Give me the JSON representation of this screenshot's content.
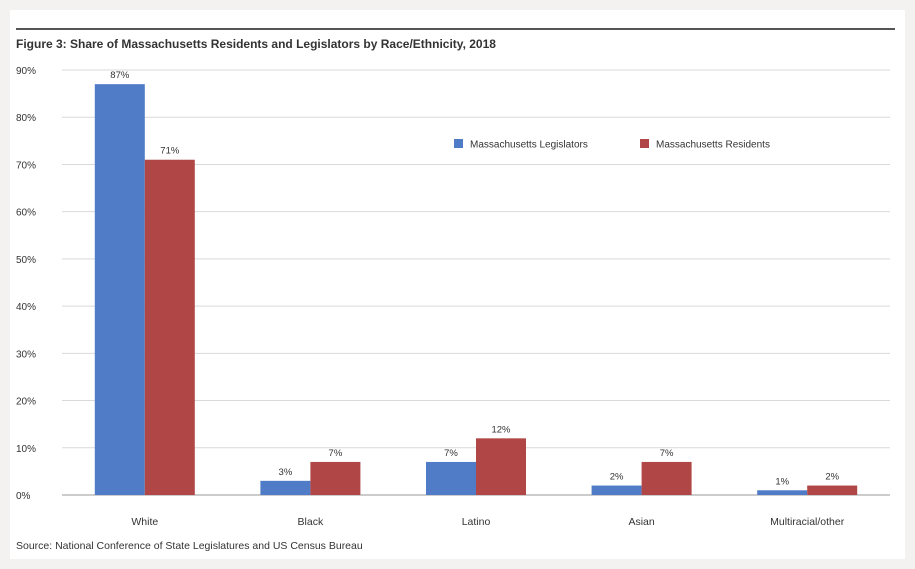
{
  "figure": {
    "title": "Figure 3: Share of Massachusetts Residents and Legislators by Race/Ethnicity, 2018",
    "source": "Source: National Conference of State Legislatures and US Census Bureau"
  },
  "chart_data": {
    "type": "bar",
    "categories": [
      "White",
      "Black",
      "Latino",
      "Asian",
      "Multiracial/other"
    ],
    "series": [
      {
        "name": "Massachusetts Legislators",
        "color": "#4f7bc7",
        "values": [
          87,
          3,
          7,
          2,
          1
        ],
        "labels": [
          "87%",
          "3%",
          "7%",
          "2%",
          "1%"
        ]
      },
      {
        "name": "Massachusetts Residents",
        "color": "#b04645",
        "values": [
          71,
          7,
          12,
          7,
          2
        ],
        "labels": [
          "71%",
          "7%",
          "12%",
          "7%",
          "2%"
        ]
      }
    ],
    "yticks": [
      "0%",
      "10%",
      "20%",
      "30%",
      "40%",
      "50%",
      "60%",
      "70%",
      "80%",
      "90%"
    ],
    "ylim": [
      0,
      90
    ],
    "grid": true,
    "legend_position": "top-right",
    "xlabel": "",
    "ylabel": ""
  }
}
